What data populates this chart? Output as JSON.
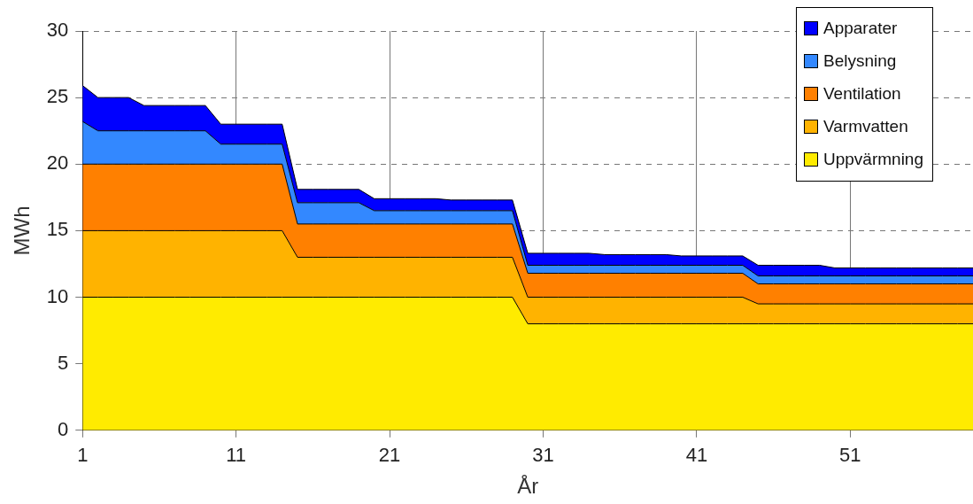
{
  "chart_data": {
    "type": "area",
    "stacked": true,
    "xlabel": "År",
    "ylabel": "MWh",
    "x": [
      1,
      2,
      3,
      4,
      5,
      6,
      7,
      8,
      9,
      10,
      11,
      12,
      13,
      14,
      15,
      16,
      17,
      18,
      19,
      20,
      21,
      22,
      23,
      24,
      25,
      26,
      27,
      28,
      29,
      30,
      31,
      32,
      33,
      34,
      35,
      36,
      37,
      38,
      39,
      40,
      41,
      42,
      43,
      44,
      45,
      46,
      47,
      48,
      49,
      50,
      51,
      52,
      53,
      54,
      55,
      56,
      57,
      58,
      59
    ],
    "xlim": [
      1,
      59
    ],
    "xticks": [
      1,
      11,
      21,
      31,
      41,
      51
    ],
    "ylim": [
      0,
      30
    ],
    "yticks": [
      0,
      5,
      10,
      15,
      20,
      25,
      30
    ],
    "grid": true,
    "legend": "top right",
    "series": [
      {
        "name": "Uppvärmning",
        "color": "#ffeb00",
        "values": [
          10,
          10,
          10,
          10,
          10,
          10,
          10,
          10,
          10,
          10,
          10,
          10,
          10,
          10,
          10,
          10,
          10,
          10,
          10,
          10,
          10,
          10,
          10,
          10,
          10,
          10,
          10,
          10,
          10,
          8,
          8,
          8,
          8,
          8,
          8,
          8,
          8,
          8,
          8,
          8,
          8,
          8,
          8,
          8,
          8,
          8,
          8,
          8,
          8,
          8,
          8,
          8,
          8,
          8,
          8,
          8,
          8,
          8,
          8
        ]
      },
      {
        "name": "Varmvatten",
        "color": "#ffb300",
        "values": [
          5,
          5,
          5,
          5,
          5,
          5,
          5,
          5,
          5,
          5,
          5,
          5,
          5,
          5,
          3,
          3,
          3,
          3,
          3,
          3,
          3,
          3,
          3,
          3,
          3,
          3,
          3,
          3,
          3,
          2,
          2,
          2,
          2,
          2,
          2,
          2,
          2,
          2,
          2,
          2,
          2,
          2,
          2,
          2,
          1.5,
          1.5,
          1.5,
          1.5,
          1.5,
          1.5,
          1.5,
          1.5,
          1.5,
          1.5,
          1.5,
          1.5,
          1.5,
          1.5,
          1.5
        ]
      },
      {
        "name": "Ventilation",
        "color": "#ff8000",
        "values": [
          5,
          5,
          5,
          5,
          5,
          5,
          5,
          5,
          5,
          5,
          5,
          5,
          5,
          5,
          2.5,
          2.5,
          2.5,
          2.5,
          2.5,
          2.5,
          2.5,
          2.5,
          2.5,
          2.5,
          2.5,
          2.5,
          2.5,
          2.5,
          2.5,
          1.8,
          1.8,
          1.8,
          1.8,
          1.8,
          1.8,
          1.8,
          1.8,
          1.8,
          1.8,
          1.8,
          1.8,
          1.8,
          1.8,
          1.8,
          1.5,
          1.5,
          1.5,
          1.5,
          1.5,
          1.5,
          1.5,
          1.5,
          1.5,
          1.5,
          1.5,
          1.5,
          1.5,
          1.5,
          1.5
        ]
      },
      {
        "name": "Belysning",
        "color": "#3388ff",
        "values": [
          3.2,
          2.5,
          2.5,
          2.5,
          2.5,
          2.5,
          2.5,
          2.5,
          2.5,
          1.5,
          1.5,
          1.5,
          1.5,
          1.5,
          1.6,
          1.6,
          1.6,
          1.6,
          1.6,
          1,
          1,
          1,
          1,
          1,
          1,
          1,
          1,
          1,
          1,
          0.6,
          0.6,
          0.6,
          0.6,
          0.6,
          0.6,
          0.6,
          0.6,
          0.6,
          0.6,
          0.6,
          0.6,
          0.6,
          0.6,
          0.6,
          0.6,
          0.6,
          0.6,
          0.6,
          0.6,
          0.6,
          0.6,
          0.6,
          0.6,
          0.6,
          0.6,
          0.6,
          0.6,
          0.6,
          0.6
        ]
      },
      {
        "name": "Apparater",
        "color": "#0000ff",
        "values": [
          2.7,
          2.5,
          2.5,
          2.5,
          1.9,
          1.9,
          1.9,
          1.9,
          1.9,
          1.5,
          1.5,
          1.5,
          1.5,
          1.5,
          1,
          1,
          1,
          1,
          1,
          0.9,
          0.9,
          0.9,
          0.9,
          0.9,
          0.8,
          0.8,
          0.8,
          0.8,
          0.8,
          0.9,
          0.9,
          0.9,
          0.9,
          0.9,
          0.8,
          0.8,
          0.8,
          0.8,
          0.8,
          0.7,
          0.7,
          0.7,
          0.7,
          0.7,
          0.8,
          0.8,
          0.8,
          0.8,
          0.8,
          0.6,
          0.6,
          0.6,
          0.6,
          0.6,
          0.6,
          0.6,
          0.6,
          0.6,
          0.6
        ]
      }
    ]
  }
}
